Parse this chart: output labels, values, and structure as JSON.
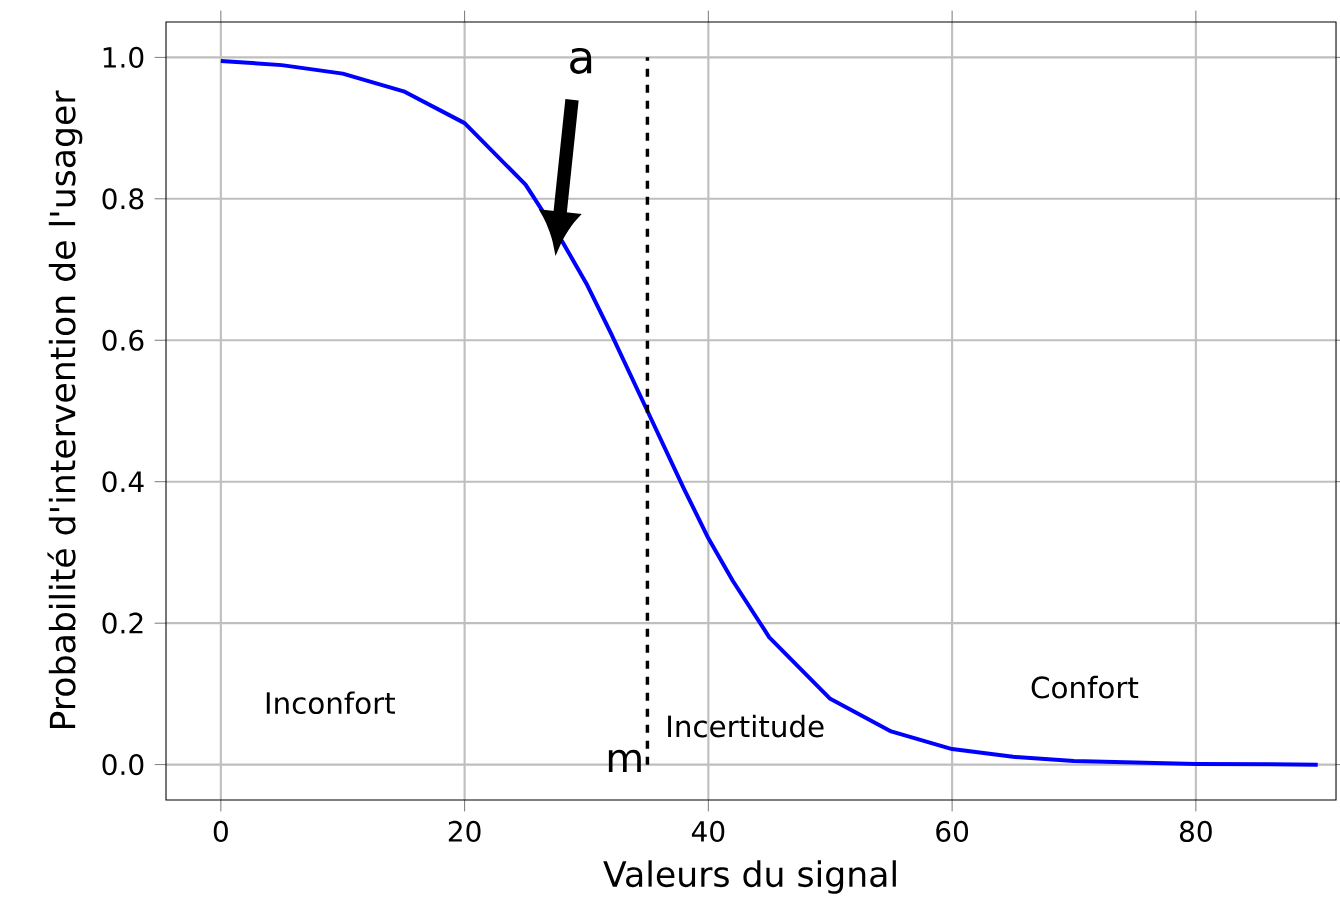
{
  "chart_data": {
    "type": "line",
    "xlabel": "Valeurs du signal",
    "ylabel": "Probabilité d'intervention de l'usager",
    "x": [
      0,
      5,
      10,
      15,
      20,
      25,
      28,
      30,
      32,
      35,
      38,
      40,
      42,
      45,
      50,
      55,
      60,
      65,
      70,
      80,
      90
    ],
    "series": [
      {
        "color": "#0000ff",
        "values": [
          0.995,
          0.989,
          0.977,
          0.952,
          0.907,
          0.82,
          0.74,
          0.68,
          0.61,
          0.5,
          0.39,
          0.32,
          0.26,
          0.18,
          0.093,
          0.047,
          0.022,
          0.011,
          0.005,
          0.001,
          0.0
        ]
      }
    ],
    "xlim": [
      -4.5,
      91.5
    ],
    "ylim": [
      -0.05,
      1.05
    ],
    "xticks": [
      0,
      20,
      40,
      60,
      80
    ],
    "yticks": [
      {
        "value": 0,
        "label": "0.0"
      },
      {
        "value": 0.2,
        "label": "0.2"
      },
      {
        "value": 0.4,
        "label": "0.4"
      },
      {
        "value": 0.6,
        "label": "0.6"
      },
      {
        "value": 0.8,
        "label": "0.8"
      },
      {
        "value": 1,
        "label": "1.0"
      }
    ],
    "grid": true,
    "marker": "none",
    "line_style": "solid",
    "ref_lines": [
      {
        "axis": "x",
        "value": 35,
        "label": "m",
        "color": "#000000",
        "line_style": "dashed"
      }
    ],
    "annotations": [
      "a",
      "Inconfort",
      "Incertitude",
      "Confort"
    ]
  }
}
